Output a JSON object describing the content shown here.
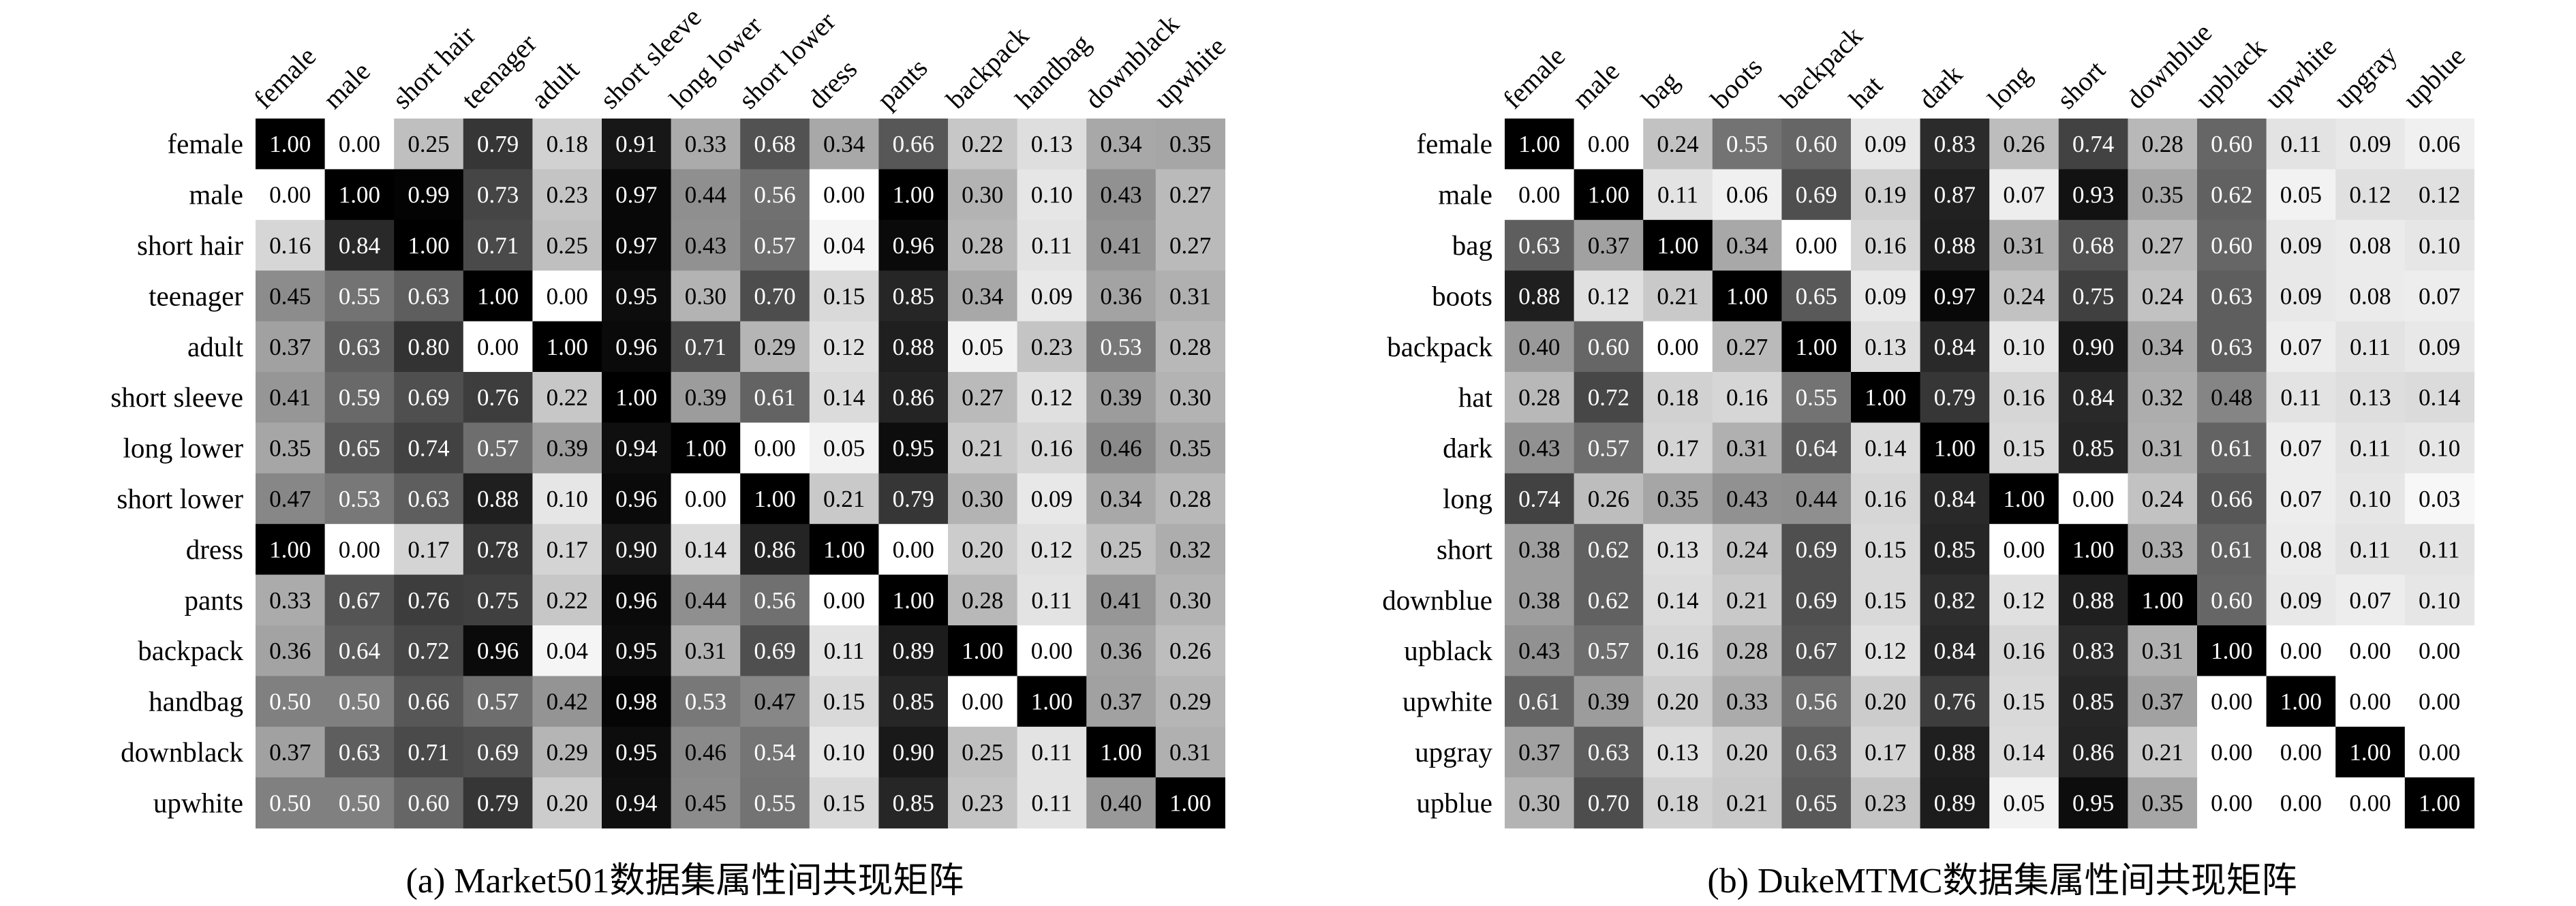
{
  "chart_data": [
    {
      "type": "heatmap",
      "caption": "(a) Market501数据集属性间共现矩阵",
      "color_scale": {
        "min_color": "#ffffff",
        "max_color": "#000000",
        "min": 0,
        "max": 1
      },
      "row_labels": [
        "female",
        "male",
        "short hair",
        "teenager",
        "adult",
        "short sleeve",
        "long lower",
        "short lower",
        "dress",
        "pants",
        "backpack",
        "handbag",
        "downblack",
        "upwhite"
      ],
      "col_labels": [
        "female",
        "male",
        "short hair",
        "teenager",
        "adult",
        "short sleeve",
        "long lower",
        "short lower",
        "dress",
        "pants",
        "backpack",
        "handbag",
        "downblack",
        "upwhite"
      ],
      "values": [
        [
          1.0,
          0.0,
          0.25,
          0.79,
          0.18,
          0.91,
          0.33,
          0.68,
          0.34,
          0.66,
          0.22,
          0.13,
          0.34,
          0.35
        ],
        [
          0.0,
          1.0,
          0.99,
          0.73,
          0.23,
          0.97,
          0.44,
          0.56,
          0.0,
          1.0,
          0.3,
          0.1,
          0.43,
          0.27
        ],
        [
          0.16,
          0.84,
          1.0,
          0.71,
          0.25,
          0.97,
          0.43,
          0.57,
          0.04,
          0.96,
          0.28,
          0.11,
          0.41,
          0.27
        ],
        [
          0.45,
          0.55,
          0.63,
          1.0,
          0.0,
          0.95,
          0.3,
          0.7,
          0.15,
          0.85,
          0.34,
          0.09,
          0.36,
          0.31
        ],
        [
          0.37,
          0.63,
          0.8,
          0.0,
          1.0,
          0.96,
          0.71,
          0.29,
          0.12,
          0.88,
          0.05,
          0.23,
          0.53,
          0.28
        ],
        [
          0.41,
          0.59,
          0.69,
          0.76,
          0.22,
          1.0,
          0.39,
          0.61,
          0.14,
          0.86,
          0.27,
          0.12,
          0.39,
          0.3
        ],
        [
          0.35,
          0.65,
          0.74,
          0.57,
          0.39,
          0.94,
          1.0,
          0.0,
          0.05,
          0.95,
          0.21,
          0.16,
          0.46,
          0.35
        ],
        [
          0.47,
          0.53,
          0.63,
          0.88,
          0.1,
          0.96,
          0.0,
          1.0,
          0.21,
          0.79,
          0.3,
          0.09,
          0.34,
          0.28
        ],
        [
          1.0,
          0.0,
          0.17,
          0.78,
          0.17,
          0.9,
          0.14,
          0.86,
          1.0,
          0.0,
          0.2,
          0.12,
          0.25,
          0.32
        ],
        [
          0.33,
          0.67,
          0.76,
          0.75,
          0.22,
          0.96,
          0.44,
          0.56,
          0.0,
          1.0,
          0.28,
          0.11,
          0.41,
          0.3
        ],
        [
          0.36,
          0.64,
          0.72,
          0.96,
          0.04,
          0.95,
          0.31,
          0.69,
          0.11,
          0.89,
          1.0,
          0.0,
          0.36,
          0.26
        ],
        [
          0.5,
          0.5,
          0.66,
          0.57,
          0.42,
          0.98,
          0.53,
          0.47,
          0.15,
          0.85,
          0.0,
          1.0,
          0.37,
          0.29
        ],
        [
          0.37,
          0.63,
          0.71,
          0.69,
          0.29,
          0.95,
          0.46,
          0.54,
          0.1,
          0.9,
          0.25,
          0.11,
          1.0,
          0.31
        ],
        [
          0.5,
          0.5,
          0.6,
          0.79,
          0.2,
          0.94,
          0.45,
          0.55,
          0.15,
          0.85,
          0.23,
          0.11,
          0.4,
          1.0
        ]
      ]
    },
    {
      "type": "heatmap",
      "caption": "(b) DukeMTMC数据集属性间共现矩阵",
      "color_scale": {
        "min_color": "#ffffff",
        "max_color": "#000000",
        "min": 0,
        "max": 1
      },
      "row_labels": [
        "female",
        "male",
        "bag",
        "boots",
        "backpack",
        "hat",
        "dark",
        "long",
        "short",
        "downblue",
        "upblack",
        "upwhite",
        "upgray",
        "upblue"
      ],
      "col_labels": [
        "female",
        "male",
        "bag",
        "boots",
        "backpack",
        "hat",
        "dark",
        "long",
        "short",
        "downblue",
        "upblack",
        "upwhite",
        "upgray",
        "upblue"
      ],
      "values": [
        [
          1.0,
          0.0,
          0.24,
          0.55,
          0.6,
          0.09,
          0.83,
          0.26,
          0.74,
          0.28,
          0.6,
          0.11,
          0.09,
          0.06
        ],
        [
          0.0,
          1.0,
          0.11,
          0.06,
          0.69,
          0.19,
          0.87,
          0.07,
          0.93,
          0.35,
          0.62,
          0.05,
          0.12,
          0.12
        ],
        [
          0.63,
          0.37,
          1.0,
          0.34,
          0.0,
          0.16,
          0.88,
          0.31,
          0.68,
          0.27,
          0.6,
          0.09,
          0.08,
          0.1
        ],
        [
          0.88,
          0.12,
          0.21,
          1.0,
          0.65,
          0.09,
          0.97,
          0.24,
          0.75,
          0.24,
          0.63,
          0.09,
          0.08,
          0.07
        ],
        [
          0.4,
          0.6,
          0.0,
          0.27,
          1.0,
          0.13,
          0.84,
          0.1,
          0.9,
          0.34,
          0.63,
          0.07,
          0.11,
          0.09
        ],
        [
          0.28,
          0.72,
          0.18,
          0.16,
          0.55,
          1.0,
          0.79,
          0.16,
          0.84,
          0.32,
          0.48,
          0.11,
          0.13,
          0.14
        ],
        [
          0.43,
          0.57,
          0.17,
          0.31,
          0.64,
          0.14,
          1.0,
          0.15,
          0.85,
          0.31,
          0.61,
          0.07,
          0.11,
          0.1
        ],
        [
          0.74,
          0.26,
          0.35,
          0.43,
          0.44,
          0.16,
          0.84,
          1.0,
          0.0,
          0.24,
          0.66,
          0.07,
          0.1,
          0.03
        ],
        [
          0.38,
          0.62,
          0.13,
          0.24,
          0.69,
          0.15,
          0.85,
          0.0,
          1.0,
          0.33,
          0.61,
          0.08,
          0.11,
          0.11
        ],
        [
          0.38,
          0.62,
          0.14,
          0.21,
          0.69,
          0.15,
          0.82,
          0.12,
          0.88,
          1.0,
          0.6,
          0.09,
          0.07,
          0.1
        ],
        [
          0.43,
          0.57,
          0.16,
          0.28,
          0.67,
          0.12,
          0.84,
          0.16,
          0.83,
          0.31,
          1.0,
          0.0,
          0.0,
          0.0
        ],
        [
          0.61,
          0.39,
          0.2,
          0.33,
          0.56,
          0.2,
          0.76,
          0.15,
          0.85,
          0.37,
          0.0,
          1.0,
          0.0,
          0.0
        ],
        [
          0.37,
          0.63,
          0.13,
          0.2,
          0.63,
          0.17,
          0.88,
          0.14,
          0.86,
          0.21,
          0.0,
          0.0,
          1.0,
          0.0
        ],
        [
          0.3,
          0.7,
          0.18,
          0.21,
          0.65,
          0.23,
          0.89,
          0.05,
          0.95,
          0.35,
          0.0,
          0.0,
          0.0,
          1.0
        ]
      ]
    }
  ]
}
